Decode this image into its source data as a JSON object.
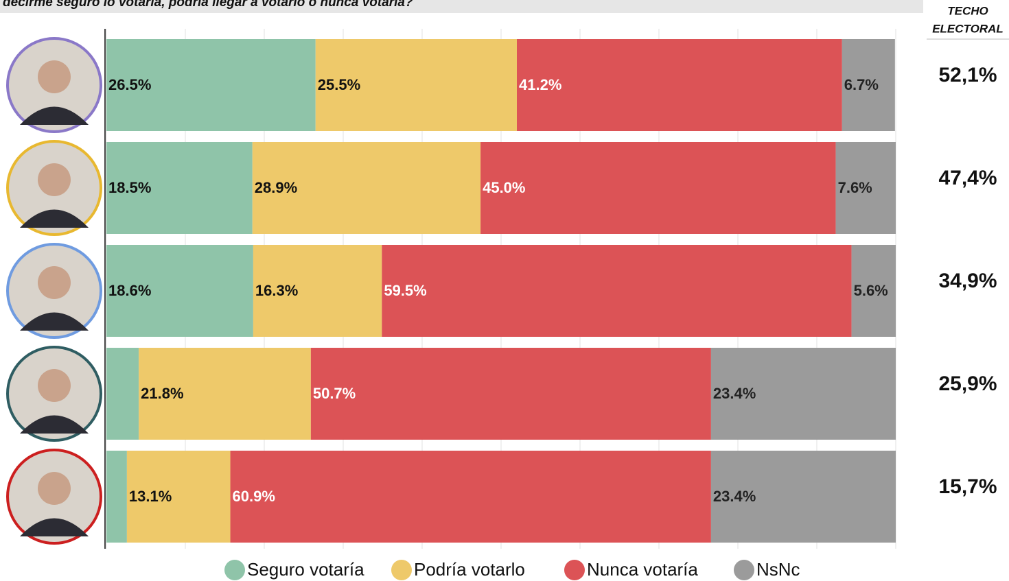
{
  "chart_data": {
    "type": "stacked-bar-horizontal",
    "title": "decirme seguro lo votaría, podría llegar a votarlo o nunca votaría?",
    "categories": [
      null,
      null,
      null,
      null,
      null
    ],
    "xlim": [
      0,
      100
    ],
    "xticks": [
      0,
      10,
      20,
      30,
      40,
      50,
      60,
      70,
      80,
      90,
      100
    ],
    "grid": true,
    "legend": "bottom",
    "series": [
      {
        "name": "Seguro votaría",
        "color": "#8fc4a9",
        "values": [
          26.5,
          18.5,
          18.6,
          4.1,
          2.6
        ],
        "value_labels": [
          "26.5%",
          "18.5%",
          "18.6%",
          null,
          null
        ]
      },
      {
        "name": "Podría votarlo",
        "color": "#eec96a",
        "values": [
          25.5,
          28.9,
          16.3,
          21.8,
          13.1
        ],
        "value_labels": [
          "25.5%",
          "28.9%",
          "16.3%",
          "21.8%",
          "13.1%"
        ]
      },
      {
        "name": "Nunca votaría",
        "color": "#dc5356",
        "values": [
          41.2,
          45.0,
          59.5,
          50.7,
          60.9
        ],
        "value_labels": [
          "41.2%",
          "45.0%",
          "59.5%",
          "50.7%",
          "60.9%"
        ]
      },
      {
        "name": "NsNc",
        "color": "#9b9b9b",
        "values": [
          6.7,
          7.6,
          5.6,
          23.4,
          23.4
        ],
        "value_labels": [
          "6.7%",
          "7.6%",
          "5.6%",
          "23.4%",
          "23.4%"
        ]
      }
    ],
    "techo": {
      "title": [
        "TECHO",
        "ELECTORAL"
      ],
      "values": [
        52.1,
        47.4,
        34.9,
        25.9,
        15.7
      ],
      "value_labels": [
        "52,1%",
        "47,4%",
        "34,9%",
        "25,9%",
        "15,7%"
      ]
    }
  }
}
